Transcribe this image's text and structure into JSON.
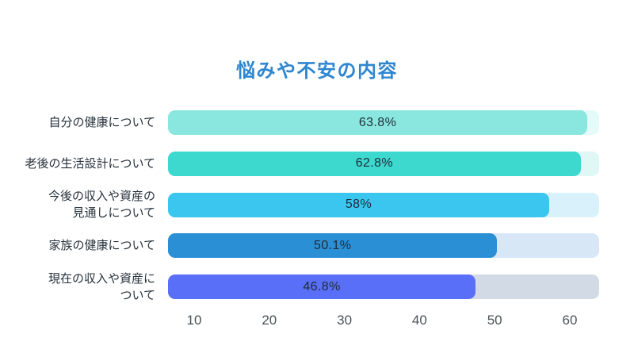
{
  "title": "悩みや不安の内容",
  "title_color": "#2E86D0",
  "chart_data": {
    "type": "bar",
    "orientation": "horizontal",
    "title": "悩みや不安の内容",
    "categories": [
      "自分の健康について",
      "老後の生活設計について",
      "今後の収入や資産の見通しについて",
      "家族の健康について",
      "現在の収入や資産について"
    ],
    "values": [
      63.8,
      62.8,
      58,
      50.1,
      46.8
    ],
    "value_labels": [
      "63.8%",
      "62.8%",
      "58%",
      "50.1%",
      "46.8%"
    ],
    "unit": "%",
    "x_ticks": [
      "10",
      "20",
      "30",
      "40",
      "50",
      "60"
    ],
    "axis_max": 65.6,
    "grid": false,
    "legend": false,
    "value_label_position": "center-of-bar"
  },
  "rows": [
    {
      "label": "自分の健康について",
      "value": 63.8,
      "value_label": "63.8%",
      "bar_color": "#8AE7DF",
      "track_color": "#E4FBF9"
    },
    {
      "label": "老後の生活設計について",
      "value": 62.8,
      "value_label": "62.8%",
      "bar_color": "#3DD8CE",
      "track_color": "#DFF7F5"
    },
    {
      "label": "今後の収入や資産の\n見通しについて",
      "value": 58,
      "value_label": "58%",
      "bar_color": "#3AC6EE",
      "track_color": "#D9F1FA"
    },
    {
      "label": "家族の健康について",
      "value": 50.1,
      "value_label": "50.1%",
      "bar_color": "#2B8FD5",
      "track_color": "#D8E7F6"
    },
    {
      "label": "現在の収入や資産に\nついて",
      "value": 46.8,
      "value_label": "46.8%",
      "bar_color": "#5A6FF7",
      "track_color": "#D1DAE5"
    }
  ]
}
